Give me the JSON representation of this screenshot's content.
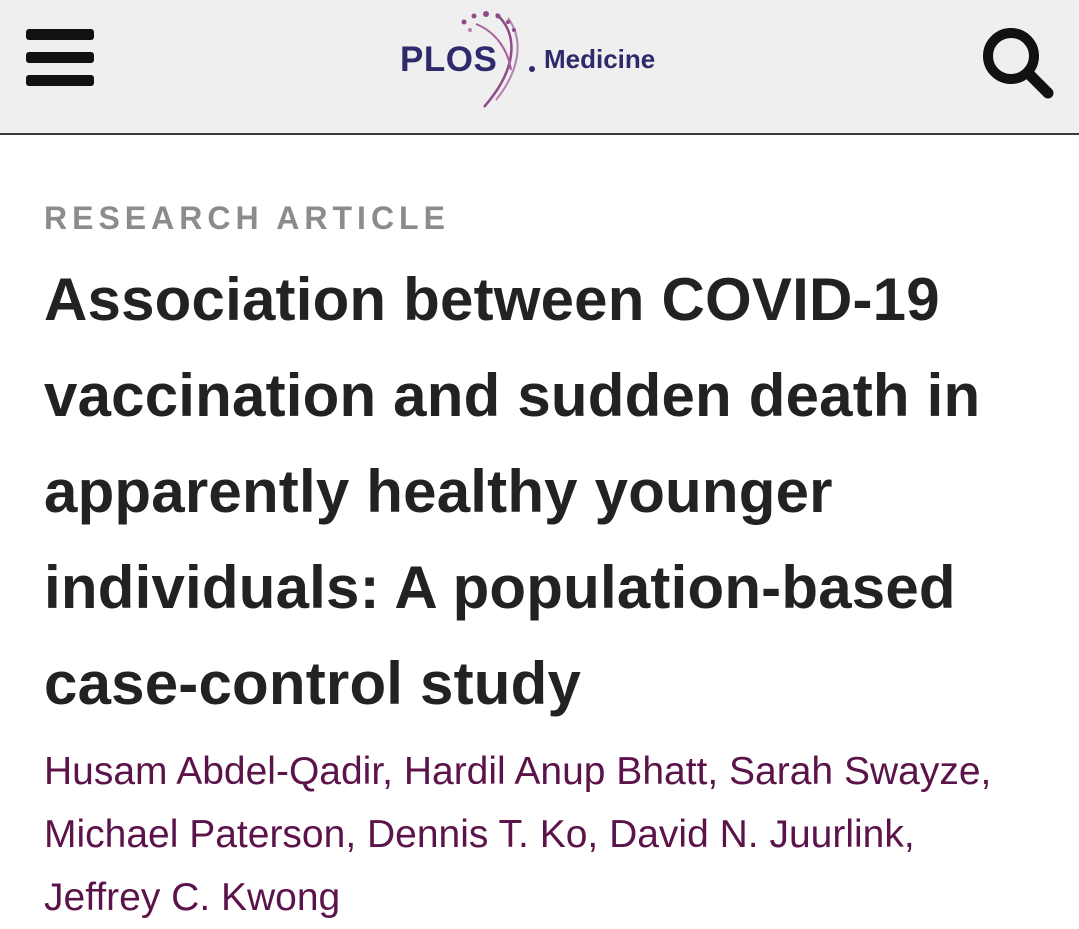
{
  "header": {
    "logo": {
      "brand": "PLOS",
      "journal": "Medicine"
    },
    "menu_icon": "hamburger-menu-icon",
    "search_icon": "search-icon",
    "brand_color": "#2e2a6b",
    "accent_color": "#8e4c86"
  },
  "article": {
    "type": "RESEARCH ARTICLE",
    "title": "Association between COVID-19 vaccination and sudden death in apparently healthy younger individuals: A population-based case-control study",
    "authors": [
      "Husam Abdel-Qadir",
      "Hardil Anup Bhatt",
      "Sarah Swayze",
      "Michael Paterson",
      "Dennis T. Ko",
      "David N. Juurlink",
      "Jeffrey C. Kwong"
    ],
    "author_color": "#5b1349"
  }
}
